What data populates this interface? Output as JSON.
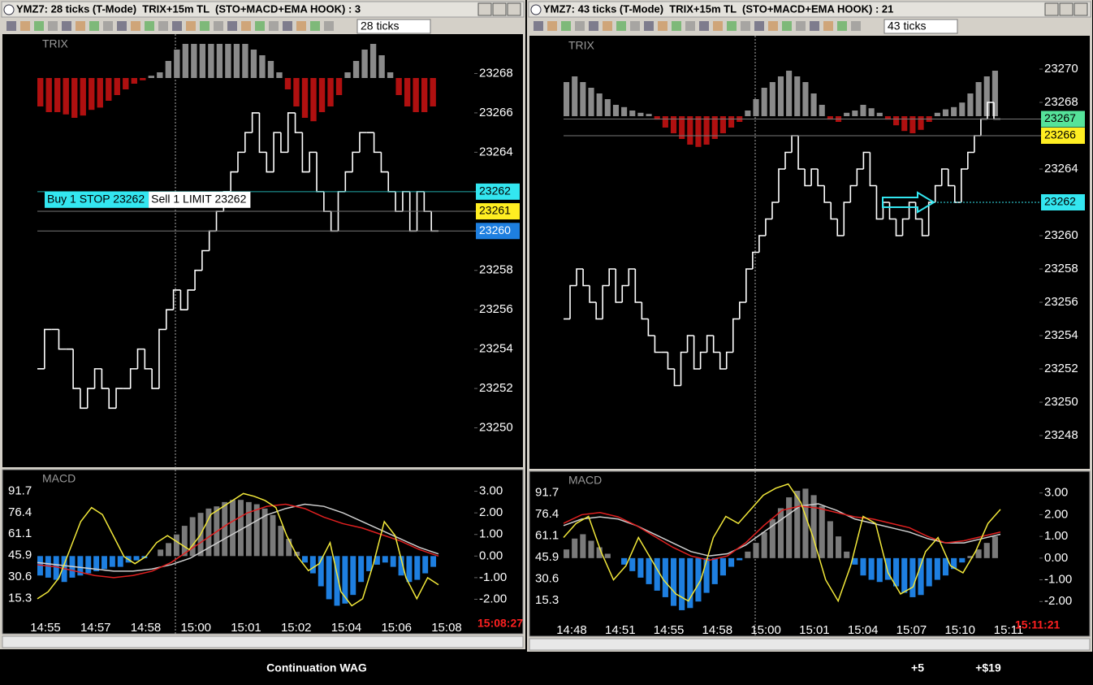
{
  "caption": {
    "title": "Continuation WAG",
    "ticks": "+5",
    "profit": "+$19"
  },
  "windows": [
    {
      "title": "YMZ7: 28 ticks (T-Mode)  TRIX+15m TL  (STO+MACD+EMA HOOK) : 3",
      "interval": "28 ticks",
      "price_label": "TRIX",
      "price_ylim": [
        23248,
        23270
      ],
      "price_ticks": [
        23250,
        23252,
        23254,
        23256,
        23258,
        23260,
        23262,
        23264,
        23266,
        23268
      ],
      "price_tags": [
        23262,
        23261,
        23260
      ],
      "price_tag_colors": [
        "#33e6f0",
        "#ffee22",
        "#1e7fe0"
      ],
      "orders": [
        {
          "label": "Buy 1 STOP 23262",
          "price": 23262
        },
        {
          "label": "Sell 1 LIMIT 23262",
          "price": 23262
        }
      ],
      "prices": [
        23253,
        23255,
        23255,
        23254,
        23254,
        23252,
        23251,
        23252,
        23253,
        23252,
        23251,
        23252,
        23252,
        23253,
        23254,
        23253,
        23252,
        23255,
        23256,
        23257,
        23256,
        23257,
        23258,
        23259,
        23260,
        23261,
        23262,
        23263,
        23264,
        23265,
        23266,
        23264,
        23263,
        23265,
        23264,
        23266,
        23265,
        23263,
        23264,
        23262,
        23261,
        23260,
        23262,
        23263,
        23264,
        23265,
        23265,
        23264,
        23263,
        23262,
        23261,
        23262,
        23260,
        23262,
        23261,
        23260
      ],
      "trix": [
        -2.5,
        -3,
        -3,
        -3.2,
        -3.5,
        -3.3,
        -2.8,
        -2.6,
        -2,
        -1.5,
        -1,
        -0.5,
        -0.2,
        0.2,
        0.5,
        1.5,
        2.5,
        3,
        3,
        3,
        3,
        3,
        3,
        3,
        3,
        2.5,
        2,
        1.5,
        0.5,
        -1,
        -2.5,
        -3.5,
        -3.8,
        -3,
        -2.5,
        -1.5,
        0.5,
        1.5,
        2.5,
        3,
        2,
        0.5,
        -1.5,
        -2.5,
        -3,
        -3,
        -2.5
      ],
      "indicator_label": "MACD",
      "stoch_ylim": [
        -10,
        107
      ],
      "stoch_ticks": [
        91.7,
        76.4,
        61.1,
        45.9,
        30.6,
        15.3
      ],
      "macd_ylim": [
        -3.6,
        4
      ],
      "macd_ticks": [
        {
          "value": 3,
          "label": "3.00"
        },
        {
          "value": 2,
          "label": "2.00"
        },
        {
          "value": 1,
          "label": "1.00"
        },
        {
          "value": 0,
          "label": "0.00"
        },
        {
          "value": -1,
          "label": "-1.00"
        },
        {
          "value": -2,
          "label": "-2.00"
        }
      ],
      "macd_hist": [
        -0.9,
        -1,
        -1.1,
        -1.2,
        -1,
        -0.9,
        -0.8,
        -0.7,
        -0.6,
        -0.5,
        -0.5,
        -0.3,
        -0.2,
        -0.1,
        0,
        0.3,
        0.6,
        1,
        1.4,
        1.8,
        2,
        2.2,
        2.3,
        2.5,
        2.6,
        2.6,
        2.5,
        2.4,
        2.2,
        1.9,
        1.4,
        0.8,
        0.2,
        -0.3,
        -0.8,
        -1.4,
        -2,
        -2.3,
        -2.2,
        -1.8,
        -1.2,
        -0.7,
        -0.4,
        -0.3,
        -0.5,
        -0.9,
        -1.2,
        -1.1,
        -0.8,
        -0.5
      ],
      "macd_line": [
        -0.4,
        -0.5,
        -0.7,
        -0.9,
        -1.0,
        -0.9,
        -0.7,
        -0.3,
        0.3,
        0.9,
        1.5,
        2.0,
        2.3,
        2.4,
        2.2,
        1.8,
        1.5,
        1.3,
        1.0,
        0.7,
        0.3,
        0.0
      ],
      "signal_line": [
        -0.3,
        -0.4,
        -0.5,
        -0.6,
        -0.7,
        -0.7,
        -0.6,
        -0.4,
        -0.1,
        0.4,
        0.9,
        1.4,
        1.9,
        2.2,
        2.4,
        2.3,
        2.0,
        1.6,
        1.2,
        0.8,
        0.4,
        0.1
      ],
      "stoch": [
        15,
        20,
        30,
        50,
        70,
        80,
        75,
        60,
        45,
        40,
        45,
        55,
        60,
        55,
        50,
        60,
        75,
        80,
        85,
        90,
        88,
        85,
        80,
        60,
        45,
        35,
        40,
        55,
        20,
        10,
        15,
        40,
        70,
        60,
        30,
        15,
        30,
        25
      ],
      "times": [
        "14:55",
        "14:57",
        "14:58",
        "15:00",
        "15:01",
        "15:02",
        "15:04",
        "15:06",
        "15:08"
      ],
      "clock": "15:08:27"
    },
    {
      "title": "YMZ7: 43 ticks (T-Mode)  TRIX+15m TL  (STO+MACD+EMA HOOK) : 21",
      "interval": "43 ticks",
      "price_label": "TRIX",
      "price_ylim": [
        23246,
        23272
      ],
      "price_ticks": [
        23248,
        23250,
        23252,
        23254,
        23256,
        23258,
        23260,
        23264,
        23268,
        23270
      ],
      "price_tags": [
        23267,
        23266,
        23262
      ],
      "price_tag_colors": [
        "#55e39a",
        "#ffee22",
        "#33e6f0"
      ],
      "orders": [],
      "prices": [
        23255,
        23257,
        23258,
        23257,
        23256,
        23255,
        23257,
        23258,
        23256,
        23257,
        23258,
        23256,
        23255,
        23254,
        23253,
        23253,
        23252,
        23251,
        23253,
        23254,
        23252,
        23253,
        23254,
        23253,
        23252,
        23253,
        23255,
        23256,
        23258,
        23259,
        23260,
        23261,
        23262,
        23264,
        23265,
        23266,
        23264,
        23263,
        23264,
        23263,
        23262,
        23261,
        23260,
        23262,
        23263,
        23264,
        23265,
        23263,
        23261,
        23262,
        23261,
        23260,
        23261,
        23262,
        23261,
        23260,
        23262,
        23263,
        23264,
        23263,
        23262,
        23264,
        23265,
        23266,
        23267,
        23268,
        23267
      ],
      "trix": [
        3,
        3.5,
        3,
        2.5,
        2,
        1.5,
        1,
        0.8,
        0.5,
        0.3,
        0.2,
        -0.3,
        -1,
        -1.5,
        -2,
        -2.5,
        -2.7,
        -2.5,
        -2,
        -1.5,
        -1,
        -0.5,
        0.5,
        1.5,
        2.5,
        3,
        3.5,
        4,
        3.5,
        3,
        2,
        1,
        -0.3,
        -0.5,
        0.3,
        0.5,
        1,
        0.7,
        0.3,
        -0.3,
        -0.8,
        -1.3,
        -1.5,
        -1.2,
        -0.5,
        0.3,
        0.6,
        0.8,
        1.2,
        2,
        3,
        3.5,
        4
      ],
      "indicator_label": "MACD",
      "stoch_ylim": [
        -10,
        107
      ],
      "stoch_ticks": [
        91.7,
        76.4,
        61.1,
        45.9,
        30.6,
        15.3
      ],
      "macd_ylim": [
        -3.6,
        4
      ],
      "macd_ticks": [
        {
          "value": 3,
          "label": "3.00"
        },
        {
          "value": 2,
          "label": "2.00"
        },
        {
          "value": 1,
          "label": "1.00"
        },
        {
          "value": 0,
          "label": "0.00"
        },
        {
          "value": -1,
          "label": "-1.00"
        },
        {
          "value": -2,
          "label": "-2.00"
        }
      ],
      "macd_hist": [
        0.4,
        0.9,
        1.1,
        0.8,
        0.5,
        0.2,
        0,
        -0.3,
        -0.6,
        -0.9,
        -1.2,
        -1.5,
        -1.8,
        -2.2,
        -2.4,
        -2.3,
        -2,
        -1.6,
        -1.2,
        -0.8,
        -0.4,
        -0.1,
        0.3,
        0.7,
        1.2,
        1.8,
        2.3,
        2.8,
        3.1,
        3.2,
        2.9,
        2.4,
        1.7,
        1,
        0.3,
        -0.3,
        -0.8,
        -1,
        -1.1,
        -1,
        -1.3,
        -1.6,
        -1.8,
        -1.7,
        -1.3,
        -1,
        -0.8,
        -0.5,
        -0.2,
        0.1,
        0.4,
        0.7,
        1
      ],
      "macd_line": [
        1.6,
        2.0,
        2.1,
        1.9,
        1.5,
        1.0,
        0.5,
        0.1,
        -0.1,
        0.1,
        0.7,
        1.5,
        2.2,
        2.4,
        2.3,
        2.1,
        1.9,
        1.8,
        1.6,
        1.4,
        1.0,
        0.7,
        0.8,
        1.0,
        1.2
      ],
      "signal_line": [
        1.5,
        1.8,
        1.9,
        1.8,
        1.5,
        1.1,
        0.7,
        0.3,
        0.1,
        0.2,
        0.6,
        1.2,
        1.8,
        2.4,
        2.5,
        2.2,
        1.8,
        1.6,
        1.4,
        1.2,
        0.9,
        0.7,
        0.7,
        0.9,
        1.1
      ],
      "stoch": [
        60,
        70,
        75,
        50,
        30,
        40,
        60,
        45,
        30,
        20,
        15,
        30,
        60,
        75,
        70,
        80,
        90,
        95,
        98,
        85,
        60,
        30,
        15,
        40,
        75,
        70,
        35,
        20,
        25,
        50,
        60,
        40,
        35,
        50,
        70,
        80
      ],
      "times": [
        "14:48",
        "14:51",
        "14:55",
        "14:58",
        "15:00",
        "15:01",
        "15:04",
        "15:07",
        "15:10",
        "15:11"
      ],
      "clock": "15:11:21"
    }
  ]
}
